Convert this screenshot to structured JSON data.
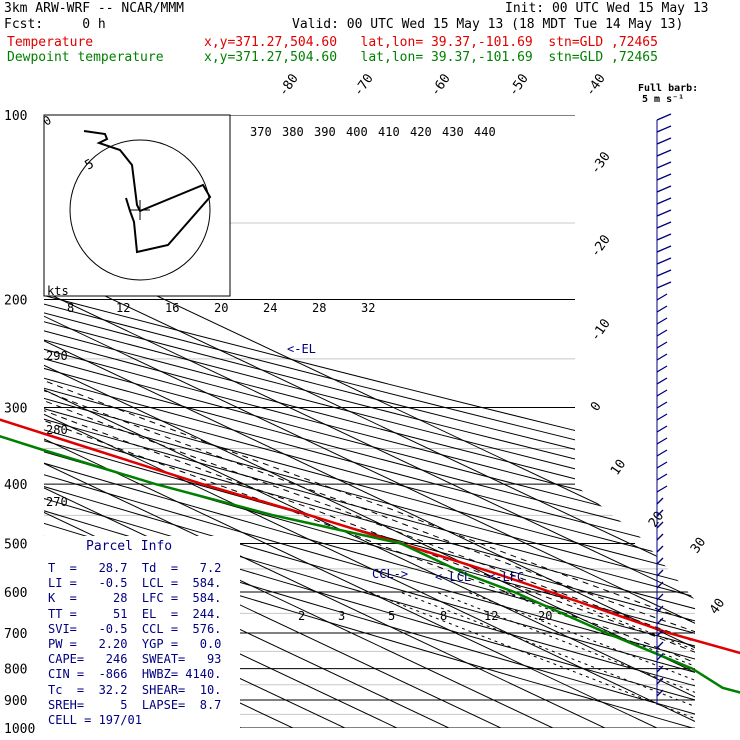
{
  "header": {
    "model": "3km ARW-WRF -- NCAR/MMM",
    "init": "Init: 00 UTC Wed 15 May 13",
    "fcst": "Fcst:     0 h",
    "valid": "Valid: 00 UTC Wed 15 May 13 (18 MDT Tue 14 May 13)",
    "temp_label": "Temperature",
    "dew_label": "Dewpoint temperature",
    "loc1": "x,y=371.27,504.60   lat,lon= 39.37,-101.69  stn=GLD ,72465",
    "loc2": "x,y=371.27,504.60   lat,lon= 39.37,-101.69  stn=GLD ,72465",
    "barb_label1": "Full barb:",
    "barb_label2": "5 m s⁻¹"
  },
  "colors": {
    "temperature": "#e00000",
    "dewpoint": "#008000",
    "text_blue": "#000080",
    "grid": "#000000"
  },
  "chart_data": {
    "type": "line",
    "plot": "skew-T log-p sounding",
    "pressure_levels": [
      "100",
      "200",
      "300",
      "400",
      "500",
      "600",
      "700",
      "800",
      "900",
      "1000"
    ],
    "isotherm_labels": [
      "-80",
      "-70",
      "-60",
      "-50",
      "-40",
      "-30",
      "-20",
      "-10",
      "0",
      "10",
      "20",
      "30",
      "40"
    ],
    "theta_labels": [
      "370",
      "380",
      "390",
      "400",
      "410",
      "420",
      "430",
      "440"
    ],
    "theta_side_labels": [
      "290",
      "280",
      "270"
    ],
    "mixing_ratio_labels": [
      "2",
      "3",
      "5",
      "8",
      "12",
      "20"
    ],
    "hodo_labels": {
      "kts": "kts",
      "speeds": [
        "8",
        "12",
        "16",
        "20",
        "24",
        "28",
        "32"
      ],
      "ring": "5",
      "zero": "0"
    },
    "annotations": {
      "el": "<-EL",
      "ccl": "CCL->",
      "lcl": "<-LCL",
      "lfc": "<-LFC"
    },
    "temperature": {
      "p": [
        880,
        860,
        800,
        700,
        600,
        560,
        500,
        450,
        400,
        350,
        300,
        250,
        200,
        160,
        130,
        110,
        100
      ],
      "t": [
        28,
        26,
        21,
        11,
        5,
        2,
        -4,
        -10,
        -18,
        -25,
        -33,
        -43,
        -57,
        -60,
        -53,
        -43,
        -38
      ]
    },
    "dewpoint": {
      "p": [
        880,
        860,
        800,
        700,
        600,
        560,
        500,
        450,
        400,
        350,
        300,
        250,
        200,
        160,
        130,
        110,
        100
      ],
      "t": [
        1,
        -1,
        1,
        -1,
        -2,
        -4,
        -4,
        -17,
        -27,
        -35,
        -43,
        -53,
        -64,
        -64,
        -57,
        -48,
        -43
      ]
    }
  },
  "parcel": {
    "title": "Parcel Info",
    "rows": [
      "T  =   28.7  Td  =   7.2",
      "LI =   -0.5  LCL =  584.",
      "K  =     28  LFC =  584.",
      "TT =     51  EL  =  244.",
      "SVI=   -0.5  CCL =  576.",
      "PW =   2.20  YGP =   0.0",
      "CAPE=   246  SWEAT=   93",
      "CIN =  -866  HWBZ= 4140.",
      "Tc  =  32.2  SHEAR=  10.",
      "SREH=     5  LAPSE=  8.7",
      "CELL = 197/01"
    ]
  }
}
